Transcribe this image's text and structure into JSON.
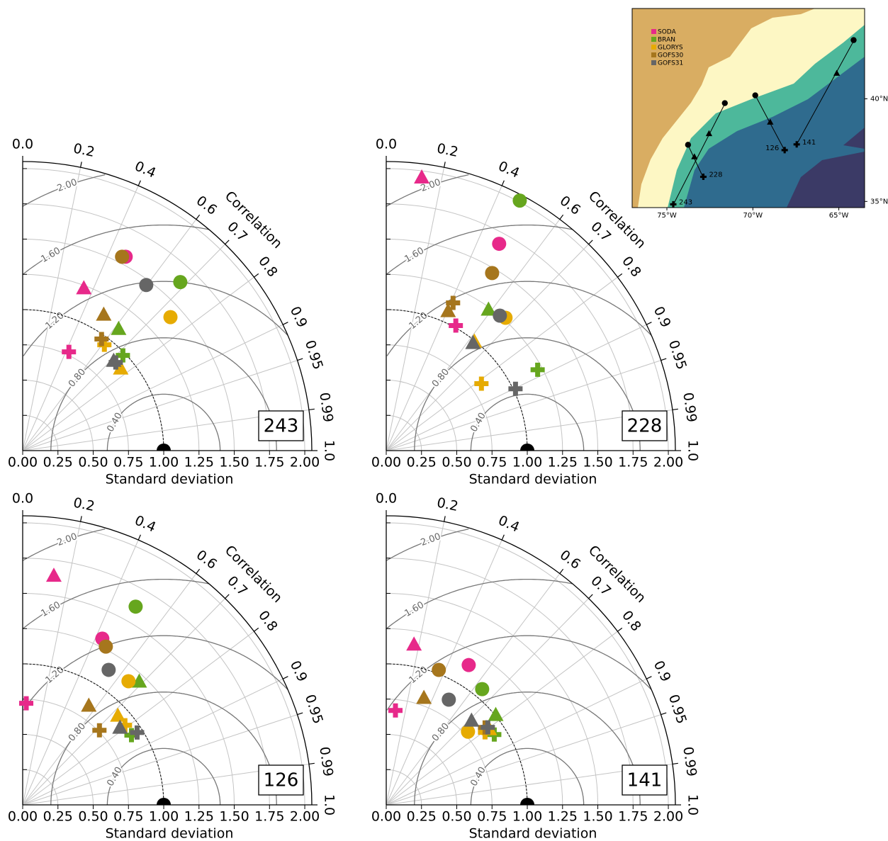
{
  "chart_data": [
    {
      "type": "taylor",
      "label": "243",
      "xlabel": "Standard deviation",
      "corr_label": "Correlation",
      "rlim": [
        0,
        2.05
      ],
      "xticks": [
        {
          "value": 0,
          "label": "0.00"
        },
        {
          "value": 0.25,
          "label": "0.25"
        },
        {
          "value": 0.5,
          "label": "0.50"
        },
        {
          "value": 0.75,
          "label": "0.75"
        },
        {
          "value": 1,
          "label": "1.00"
        },
        {
          "value": 1.25,
          "label": "1.25"
        },
        {
          "value": 1.5,
          "label": "1.50"
        },
        {
          "value": 1.75,
          "label": "1.75"
        },
        {
          "value": 2,
          "label": "2.00"
        }
      ],
      "corr_ticks": [
        {
          "value": 0,
          "label": "0.0"
        },
        0.2,
        0.4,
        0.6,
        0.7,
        0.8,
        0.9,
        0.95,
        0.99,
        {
          "value": 1,
          "label": "1.0"
        }
      ],
      "rms_ticks": [
        {
          "value": 0.4,
          "label": "0.40"
        },
        {
          "value": 0.8,
          "label": "0.80"
        },
        {
          "value": 1.2,
          "label": "1.20"
        },
        {
          "value": 1.6,
          "label": "1.60"
        },
        {
          "value": 2,
          "label": "2.00"
        }
      ],
      "ref_std": 1.0,
      "grid": true,
      "markers": [
        "circle",
        "triangle",
        "plus"
      ],
      "series": [
        {
          "color": "#e7298a",
          "std": [
            1.557,
            1.228,
            0.773
          ],
          "corr": [
            0.469,
            0.353,
            0.424
          ]
        },
        {
          "color": "#66a61e",
          "std": [
            1.636,
            1.097,
            0.98
          ],
          "corr": [
            0.683,
            0.62,
            0.725
          ]
        },
        {
          "color": "#e6ab02",
          "std": [
            1.412,
            0.905,
            0.948
          ],
          "corr": [
            0.742,
            0.768,
            0.611
          ]
        },
        {
          "color": "#a6761d",
          "std": [
            1.545,
            1.12,
            0.969
          ],
          "corr": [
            0.456,
            0.513,
            0.577
          ]
        },
        {
          "color": "#666666",
          "std": [
            1.465,
            0.905,
            0.909
          ],
          "corr": [
            0.598,
            0.713,
            0.726
          ]
        }
      ]
    },
    {
      "type": "taylor",
      "label": "228",
      "xlabel": "Standard deviation",
      "corr_label": "Correlation",
      "rlim": [
        0,
        2.05
      ],
      "xticks": [
        {
          "value": 0,
          "label": "0.00"
        },
        {
          "value": 0.25,
          "label": "0.25"
        },
        {
          "value": 0.5,
          "label": "0.50"
        },
        {
          "value": 0.75,
          "label": "0.75"
        },
        {
          "value": 1,
          "label": "1.00"
        },
        {
          "value": 1.25,
          "label": "1.25"
        },
        {
          "value": 1.5,
          "label": "1.50"
        },
        {
          "value": 1.75,
          "label": "1.75"
        },
        {
          "value": 2,
          "label": "2.00"
        }
      ],
      "corr_ticks": [
        {
          "value": 0,
          "label": "0.0"
        },
        0.2,
        0.4,
        0.6,
        0.7,
        0.8,
        0.9,
        0.95,
        0.99,
        {
          "value": 1,
          "label": "1.0"
        }
      ],
      "rms_ticks": [
        {
          "value": 0.4,
          "label": "0.40"
        },
        {
          "value": 0.8,
          "label": "0.80"
        },
        {
          "value": 1.2,
          "label": "1.20"
        },
        {
          "value": 1.6,
          "label": "1.60"
        },
        {
          "value": 2,
          "label": "2.00"
        }
      ],
      "ref_std": 1.0,
      "grid": true,
      "markers": [
        "circle",
        "triangle",
        "plus"
      ],
      "series": [
        {
          "color": "#e7298a",
          "std": [
            1.671,
            1.951,
            1.015
          ],
          "corr": [
            0.479,
            0.129,
            0.486
          ]
        },
        {
          "color": "#66a61e",
          "std": [
            2.01,
            1.233,
            1.217
          ],
          "corr": [
            0.471,
            0.588,
            0.882
          ]
        },
        {
          "color": "#e6ab02",
          "std": [
            1.266,
            0.992,
            0.825
          ],
          "corr": [
            0.668,
            0.63,
            0.818
          ]
        },
        {
          "color": "#a6761d",
          "std": [
            1.466,
            1.08,
            1.15
          ],
          "corr": [
            0.512,
            0.406,
            0.412
          ]
        },
        {
          "color": "#666666",
          "std": [
            1.251,
            0.978,
            1.016
          ],
          "corr": [
            0.644,
            0.629,
            0.902
          ]
        }
      ]
    },
    {
      "type": "taylor",
      "label": "126",
      "xlabel": "Standard deviation",
      "corr_label": "Correlation",
      "rlim": [
        0,
        2.05
      ],
      "xticks": [
        {
          "value": 0,
          "label": "0.00"
        },
        {
          "value": 0.25,
          "label": "0.25"
        },
        {
          "value": 0.5,
          "label": "0.50"
        },
        {
          "value": 0.75,
          "label": "0.75"
        },
        {
          "value": 1,
          "label": "1.00"
        },
        {
          "value": 1.25,
          "label": "1.25"
        },
        {
          "value": 1.5,
          "label": "1.50"
        },
        {
          "value": 1.75,
          "label": "1.75"
        },
        {
          "value": 2,
          "label": "2.00"
        }
      ],
      "corr_ticks": [
        {
          "value": 0,
          "label": "0.0"
        },
        0.2,
        0.4,
        0.6,
        0.7,
        0.8,
        0.9,
        0.95,
        0.99,
        {
          "value": 1,
          "label": "1.0"
        }
      ],
      "rms_ticks": [
        {
          "value": 0.4,
          "label": "0.40"
        },
        {
          "value": 0.8,
          "label": "0.80"
        },
        {
          "value": 1.2,
          "label": "1.20"
        },
        {
          "value": 1.6,
          "label": "1.60"
        },
        {
          "value": 2,
          "label": "2.00"
        }
      ],
      "ref_std": 1.0,
      "grid": true,
      "markers": [
        "circle",
        "triangle",
        "plus"
      ],
      "series": [
        {
          "color": "#e7298a",
          "std": [
            1.307,
            1.637,
            0.721
          ],
          "corr": [
            0.432,
            0.135,
            0.035
          ]
        },
        {
          "color": "#66a61e",
          "std": [
            1.618,
            1.201,
            0.916
          ],
          "corr": [
            0.495,
            0.688,
            0.842
          ]
        },
        {
          "color": "#e6ab02",
          "std": [
            1.154,
            0.923,
            0.919
          ],
          "corr": [
            0.65,
            0.731,
            0.789
          ]
        },
        {
          "color": "#a6761d",
          "std": [
            1.268,
            0.843,
            0.759
          ],
          "corr": [
            0.465,
            0.556,
            0.717
          ]
        },
        {
          "color": "#666666",
          "std": [
            1.135,
            0.879,
            0.96
          ],
          "corr": [
            0.537,
            0.785,
            0.845
          ]
        }
      ]
    },
    {
      "type": "taylor",
      "label": "141",
      "xlabel": "Standard deviation",
      "corr_label": "Correlation",
      "rlim": [
        0,
        2.05
      ],
      "xticks": [
        {
          "value": 0,
          "label": "0.00"
        },
        {
          "value": 0.25,
          "label": "0.25"
        },
        {
          "value": 0.5,
          "label": "0.50"
        },
        {
          "value": 0.75,
          "label": "0.75"
        },
        {
          "value": 1,
          "label": "1.00"
        },
        {
          "value": 1.25,
          "label": "1.25"
        },
        {
          "value": 1.5,
          "label": "1.50"
        },
        {
          "value": 1.75,
          "label": "1.75"
        },
        {
          "value": 2,
          "label": "2.00"
        }
      ],
      "corr_ticks": [
        {
          "value": 0,
          "label": "0.0"
        },
        0.2,
        0.4,
        0.6,
        0.7,
        0.8,
        0.9,
        0.95,
        0.99,
        {
          "value": 1,
          "label": "1.0"
        }
      ],
      "rms_ticks": [
        {
          "value": 0.4,
          "label": "0.40"
        },
        {
          "value": 0.8,
          "label": "0.80"
        },
        {
          "value": 1.2,
          "label": "1.20"
        },
        {
          "value": 1.6,
          "label": "1.60"
        },
        {
          "value": 2,
          "label": "2.00"
        }
      ],
      "ref_std": 1.0,
      "grid": true,
      "markers": [
        "circle",
        "triangle",
        "plus"
      ],
      "series": [
        {
          "color": "#e7298a",
          "std": [
            1.151,
            1.151,
            0.673
          ],
          "corr": [
            0.508,
            0.171,
            0.097
          ]
        },
        {
          "color": "#66a61e",
          "std": [
            1.066,
            1.003,
            0.914
          ],
          "corr": [
            0.638,
            0.774,
            0.838
          ]
        },
        {
          "color": "#e6ab02",
          "std": [
            0.778,
            0.905,
            0.869
          ],
          "corr": [
            0.745,
            0.807,
            0.806
          ]
        },
        {
          "color": "#a6761d",
          "std": [
            1.027,
            0.802,
            0.89
          ],
          "corr": [
            0.363,
            0.333,
            0.787
          ]
        },
        {
          "color": "#666666",
          "std": [
            0.868,
            0.848,
            0.906
          ],
          "corr": [
            0.511,
            0.713,
            0.795
          ]
        }
      ]
    }
  ],
  "map": {
    "legend": [
      {
        "name": "SODA",
        "color": "#e7298a"
      },
      {
        "name": "BRAN",
        "color": "#66a61e"
      },
      {
        "name": "GLORYS",
        "color": "#e6ab02"
      },
      {
        "name": "GOFS30",
        "color": "#a6761d"
      },
      {
        "name": "GOFS31",
        "color": "#666666"
      }
    ],
    "xlim": [
      -77.02,
      -63.5
    ],
    "ylim": [
      34.7,
      44.4
    ],
    "xticks": [
      {
        "value": -75,
        "label": "75°W"
      },
      {
        "value": -70,
        "label": "70°W"
      },
      {
        "value": -65,
        "label": "65°W"
      }
    ],
    "yticks": [
      {
        "value": 40,
        "label": "40°N"
      },
      {
        "value": 35,
        "label": "35°N"
      }
    ],
    "stations": [
      {
        "label": "243",
        "lon": -74.63,
        "lat": 34.86
      },
      {
        "label": "228",
        "lon": -72.88,
        "lat": 36.2
      },
      {
        "label": "126",
        "lon": -68.15,
        "lat": 37.5
      },
      {
        "label": "141",
        "lon": -67.45,
        "lat": 37.78
      }
    ],
    "sites": [
      {
        "marker": "circle",
        "lon": -73.77,
        "lat": 37.76
      },
      {
        "marker": "circle",
        "lon": -71.63,
        "lat": 39.79
      },
      {
        "marker": "circle",
        "lon": -69.86,
        "lat": 40.17
      },
      {
        "marker": "circle",
        "lon": -64.14,
        "lat": 42.86
      },
      {
        "marker": "triangle",
        "lon": -73.4,
        "lat": 37.17
      },
      {
        "marker": "triangle",
        "lon": -72.55,
        "lat": 38.3
      },
      {
        "marker": "triangle",
        "lon": -68.99,
        "lat": 38.86
      },
      {
        "marker": "triangle",
        "lon": -65.12,
        "lat": 41.24
      }
    ]
  }
}
